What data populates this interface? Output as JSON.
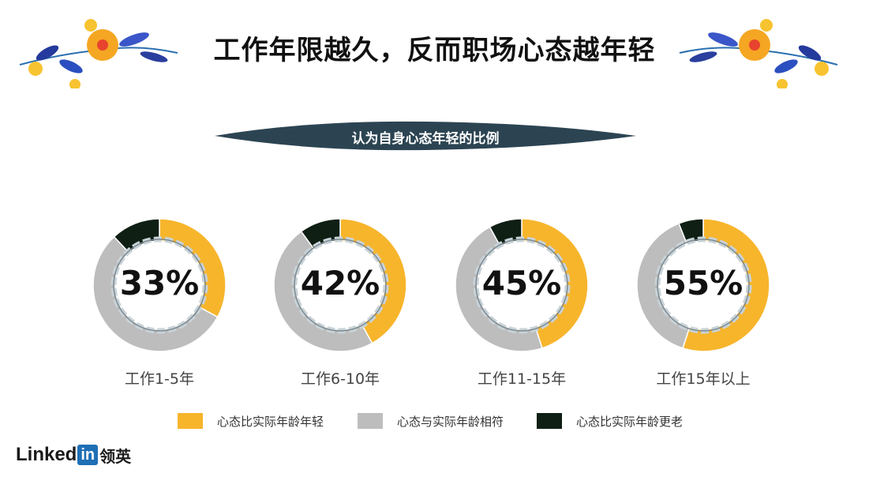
{
  "title": "工作年限越久，反而职场心态越年轻",
  "subtitle": "认为自身心态年轻的比例",
  "colors": {
    "younger": "#f7b52c",
    "same": "#bdbdbd",
    "older": "#0f1f14",
    "ribbon": "#2c4452"
  },
  "chart_data": {
    "type": "pie",
    "title": "认为自身心态年轻的比例",
    "categories": [
      "工作1-5年",
      "工作6-10年",
      "工作11-15年",
      "工作15年以上"
    ],
    "center_labels": [
      "33%",
      "42%",
      "45%",
      "55%"
    ],
    "series": [
      {
        "name": "心态比实际年龄年轻",
        "values": [
          33,
          42,
          45,
          55
        ]
      },
      {
        "name": "心态与实际年龄相符",
        "values": [
          55,
          48,
          47,
          39
        ]
      },
      {
        "name": "心态比实际年龄更老",
        "values": [
          12,
          10,
          8,
          6
        ]
      }
    ],
    "legend_position": "bottom"
  },
  "brand": {
    "linked": "Linked",
    "in": "in",
    "cn": "领英"
  }
}
